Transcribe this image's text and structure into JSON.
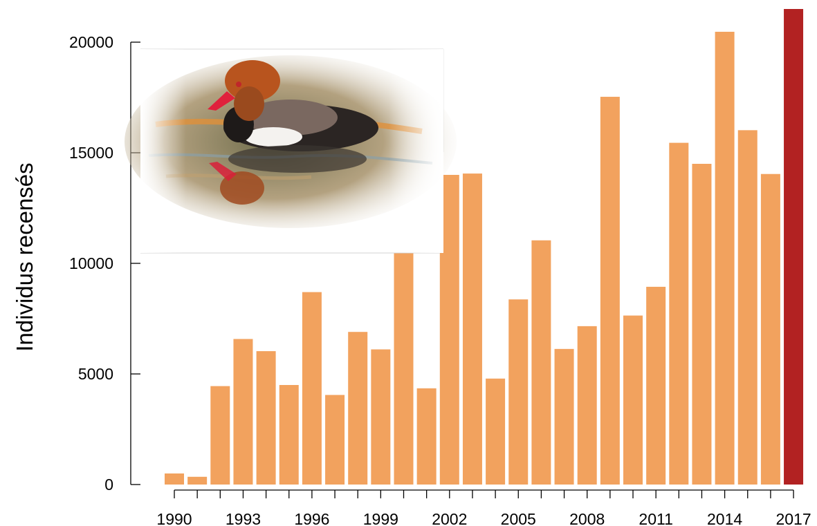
{
  "chart_data": {
    "type": "bar",
    "ylabel": "Individus recensés",
    "x": [
      1990,
      1991,
      1992,
      1993,
      1994,
      1995,
      1996,
      1997,
      1998,
      1999,
      2000,
      2001,
      2002,
      2003,
      2004,
      2005,
      2006,
      2007,
      2008,
      2009,
      2010,
      2011,
      2012,
      2013,
      2014,
      2015,
      2016,
      2017
    ],
    "values": [
      500,
      350,
      4450,
      6580,
      6030,
      4500,
      8700,
      4050,
      6900,
      6110,
      13630,
      4350,
      14000,
      14060,
      4790,
      8370,
      11040,
      6130,
      7160,
      17530,
      7640,
      8940,
      15450,
      14500,
      20470,
      16020,
      14040,
      21500
    ],
    "xtick_labels": [
      "1990",
      "1993",
      "1996",
      "1999",
      "2002",
      "2005",
      "2008",
      "2011",
      "2014",
      "2017"
    ],
    "yticks": [
      0,
      5000,
      10000,
      15000,
      20000
    ],
    "ylim": [
      0,
      21500
    ],
    "colors": {
      "bar": "#F2A25E",
      "highlight": "#B22222"
    },
    "highlight_index": 27,
    "inset_image": "red-crested-pochard-duck"
  }
}
